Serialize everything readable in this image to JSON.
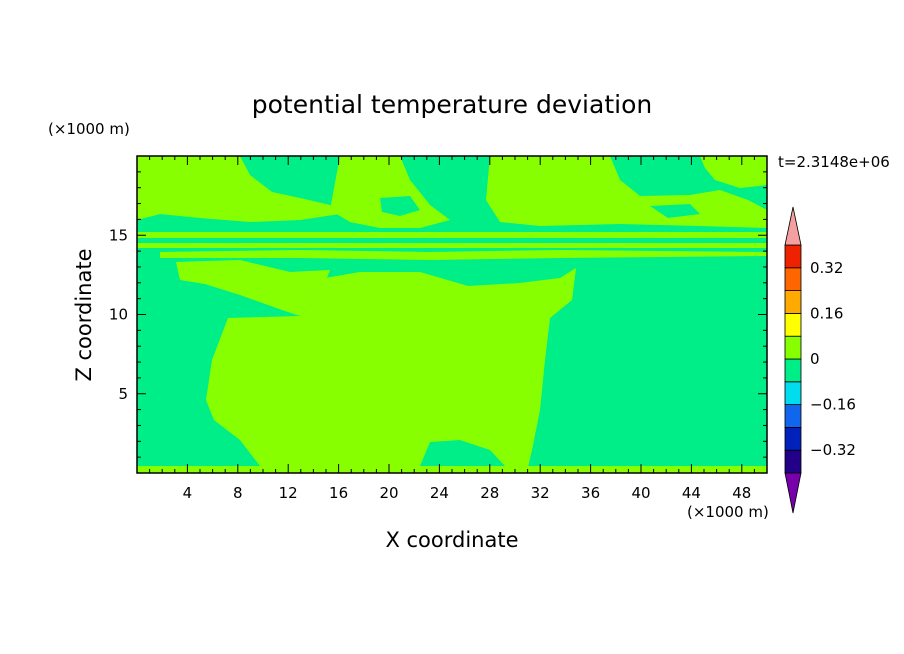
{
  "chart_data": {
    "type": "heatmap",
    "title": "potential temperature deviation",
    "xlabel": "X coordinate",
    "ylabel": "Z coordinate",
    "x_unit": "(×1000 m)",
    "y_unit": "(×1000 m)",
    "time_label": "t=2.3148e+06",
    "xlim": [
      0,
      50
    ],
    "ylim": [
      0,
      20
    ],
    "x_ticks": [
      4,
      8,
      12,
      16,
      20,
      24,
      28,
      32,
      36,
      40,
      44,
      48
    ],
    "y_ticks": [
      5,
      10,
      15
    ],
    "colorbar": {
      "levels": [
        -0.4,
        -0.32,
        -0.24,
        -0.16,
        -0.08,
        0,
        0.08,
        0.16,
        0.24,
        0.32,
        0.4
      ],
      "tick_labels": [
        "−0.32",
        "−0.16",
        "0",
        "0.16",
        "0.32"
      ],
      "tick_values": [
        -0.32,
        -0.16,
        0,
        0.16,
        0.32
      ],
      "colors": [
        "#220088",
        "#0022bb",
        "#1166ee",
        "#00ddee",
        "#00ee88",
        "#88ff00",
        "#ffff00",
        "#ffaa00",
        "#ff6600",
        "#ee2200"
      ],
      "under_color": "#7700aa",
      "over_color": "#f4a0a0"
    },
    "fields": {
      "background_color": "#00ee88",
      "positive_color": "#88ff00",
      "description_levels": [
        -0.08,
        0,
        0.08
      ]
    }
  }
}
